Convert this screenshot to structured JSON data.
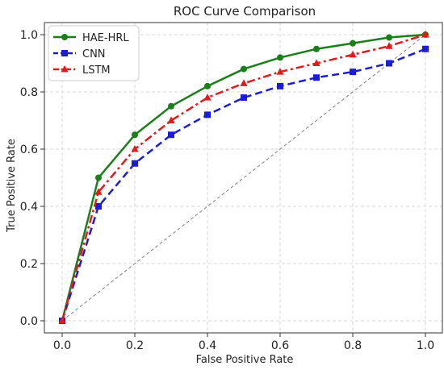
{
  "chart_data": {
    "type": "line",
    "title": "ROC Curve Comparison",
    "xlabel": "False Positive Rate",
    "ylabel": "True Positive Rate",
    "xlim": [
      0.0,
      1.0
    ],
    "ylim": [
      0.0,
      1.0
    ],
    "xticks": [
      "0.0",
      "0.2",
      "0.4",
      "0.6",
      "0.8",
      "1.0"
    ],
    "yticks": [
      "0.0",
      "0.2",
      "0.4",
      "0.6",
      "0.8",
      "1.0"
    ],
    "grid": true,
    "legend_position": "top-left",
    "x": [
      0.0,
      0.1,
      0.2,
      0.3,
      0.4,
      0.5,
      0.6,
      0.7,
      0.8,
      0.9,
      1.0
    ],
    "series": [
      {
        "name": "HAE-HRL",
        "color": "#1a7f1a",
        "style": "solid",
        "marker": "circle",
        "values": [
          0.0,
          0.5,
          0.65,
          0.75,
          0.82,
          0.88,
          0.92,
          0.95,
          0.97,
          0.99,
          1.0
        ]
      },
      {
        "name": "CNN",
        "color": "#1c1cd6",
        "style": "dashed",
        "marker": "square",
        "values": [
          0.0,
          0.4,
          0.55,
          0.65,
          0.72,
          0.78,
          0.82,
          0.85,
          0.87,
          0.9,
          0.95
        ]
      },
      {
        "name": "LSTM",
        "color": "#e31a1c",
        "style": "dashdot",
        "marker": "triangle",
        "values": [
          0.0,
          0.45,
          0.6,
          0.7,
          0.78,
          0.83,
          0.87,
          0.9,
          0.93,
          0.96,
          1.0
        ]
      }
    ],
    "reference_line": {
      "color": "#808080",
      "style": "dashed",
      "x": [
        0.0,
        1.0
      ],
      "y": [
        0.0,
        1.0
      ]
    }
  }
}
